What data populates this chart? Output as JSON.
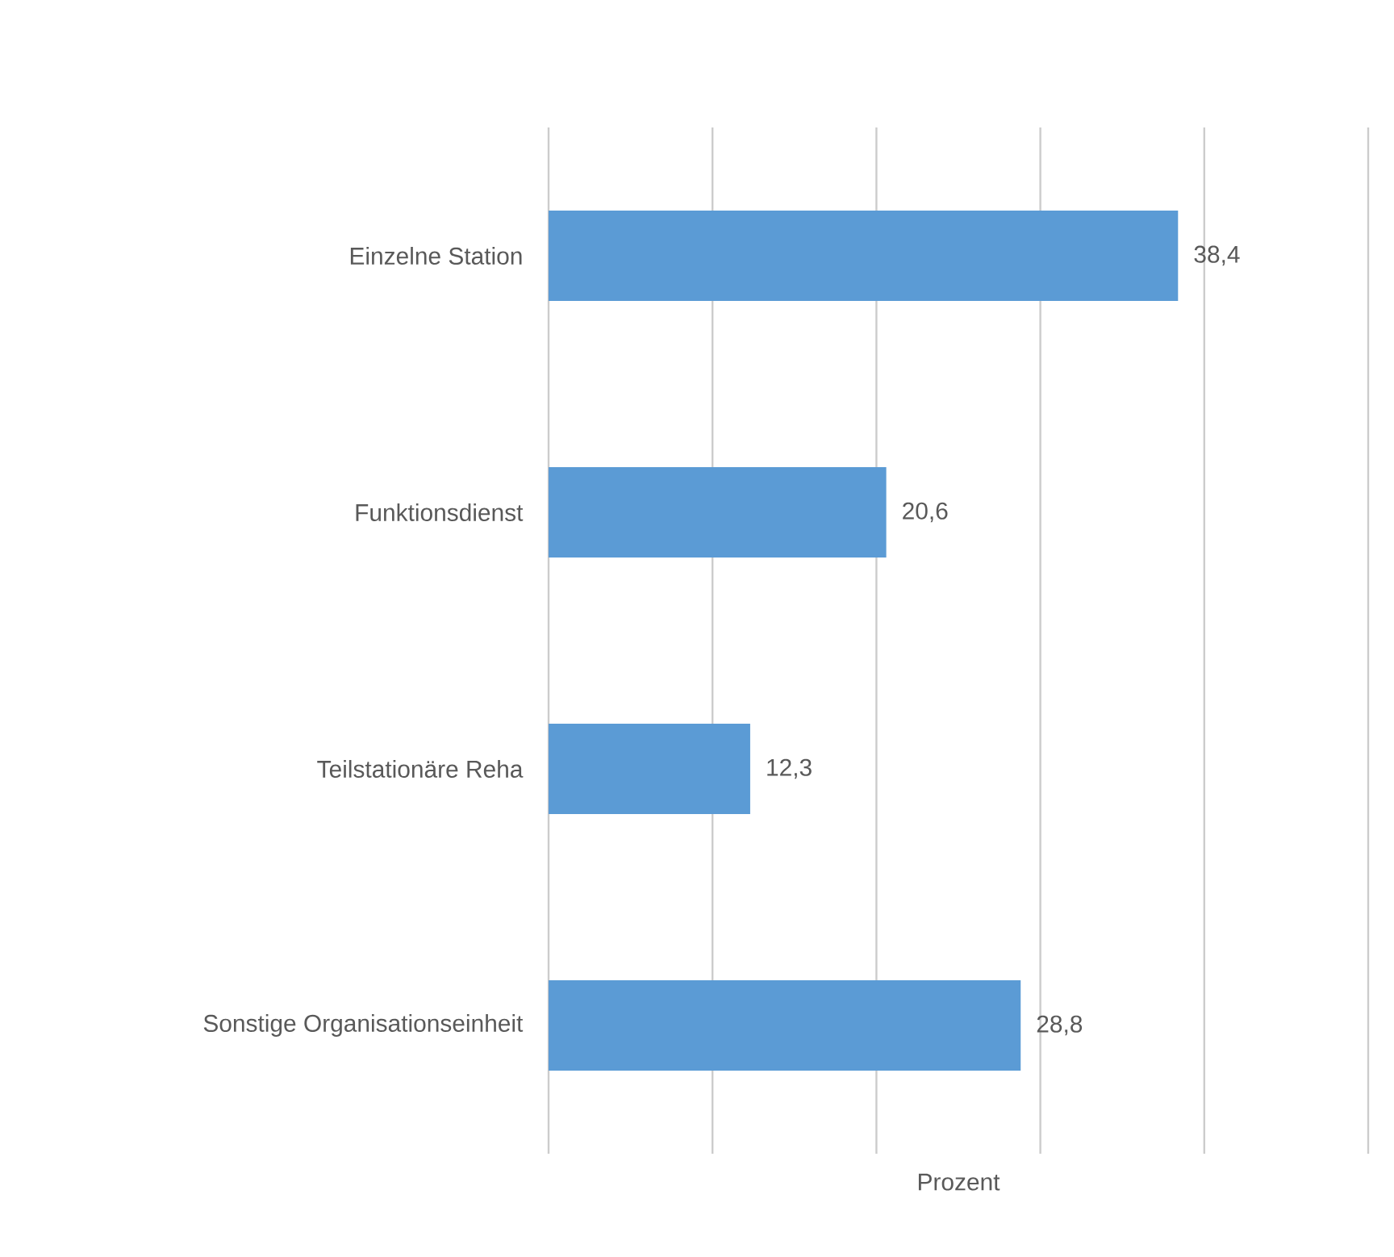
{
  "chart_data": {
    "type": "bar",
    "orientation": "horizontal",
    "xlabel": "Prozent",
    "categories": [
      "Einzelne Station",
      "Funktionsdienst",
      "Teilstationäre Reha",
      "Sonstige Organisationseinheit"
    ],
    "values": [
      38.4,
      20.6,
      12.3,
      28.8
    ],
    "value_labels": [
      "38,4",
      "20,6",
      "12,3",
      "28,8"
    ],
    "color": "#5b9bd5",
    "xlim": [
      0,
      50
    ],
    "xticks": [
      {
        "value": 0,
        "label": null
      },
      {
        "value": 10,
        "label": null
      },
      {
        "value": 20,
        "label": null
      },
      {
        "value": 30,
        "label": null
      },
      {
        "value": 40,
        "label": null
      },
      {
        "value": 50,
        "label": null
      }
    ],
    "grid": "x",
    "tick_labels": "y"
  }
}
